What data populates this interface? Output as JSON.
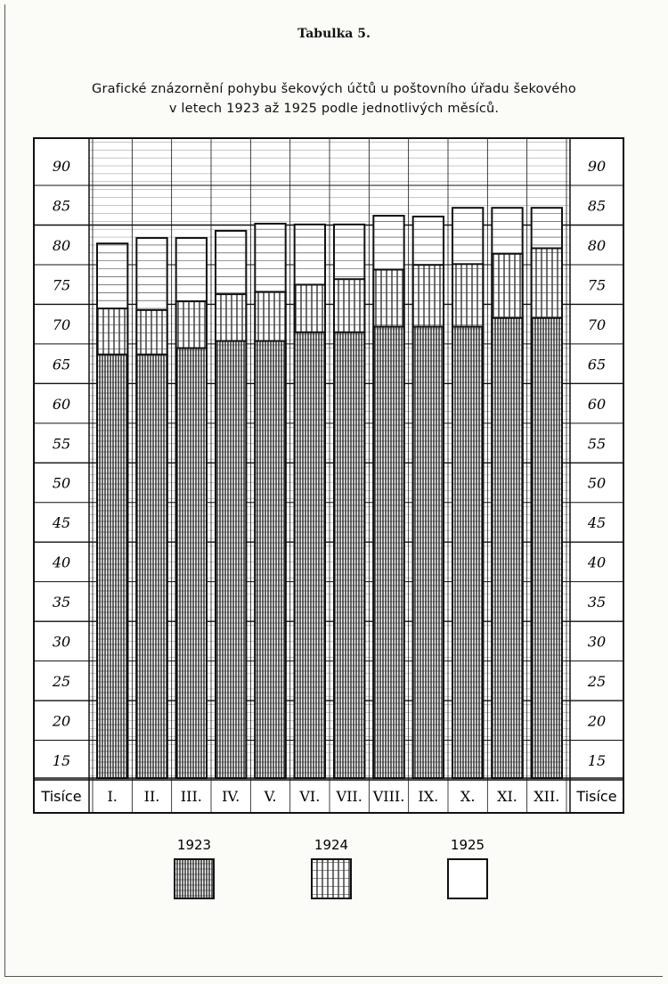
{
  "title": "Tabulka 5.",
  "subtitle_line1": "Grafické znázornění pohybu šekových účtů u poštovního úřadu šekového",
  "subtitle_line2": "v letech 1923 až 1925 podle jednotlivých měsíců.",
  "chart_data": {
    "type": "bar",
    "title": "Grafické znázornění pohybu šekových účtů u poštovního úřadu šekového v letech 1923 až 1925 podle jednotlivých měsíců.",
    "ylabel": "Tisíce",
    "ylim": [
      12,
      95
    ],
    "yticks": [
      "15",
      "20",
      "25",
      "30",
      "35",
      "40",
      "45",
      "50",
      "55",
      "60",
      "65",
      "70",
      "75",
      "80",
      "85",
      "90"
    ],
    "categories": [
      "I.",
      "II.",
      "III.",
      "IV.",
      "V.",
      "VI.",
      "VII.",
      "VIII.",
      "IX.",
      "X.",
      "XI.",
      "XII."
    ],
    "grid": true,
    "legend_placement": "bottom",
    "series": [
      {
        "name": "1923",
        "pattern": "dense-vertical-hatch",
        "values": [
          66.2,
          66.2,
          67.0,
          67.9,
          67.9,
          69.0,
          69.0,
          69.7,
          69.7,
          69.7,
          70.8,
          70.8
        ]
      },
      {
        "name": "1924",
        "pattern": "vertical-hatch",
        "values": [
          72.0,
          71.8,
          72.9,
          73.8,
          74.1,
          75.0,
          75.7,
          76.9,
          77.5,
          77.6,
          78.9,
          79.6
        ]
      },
      {
        "name": "1925",
        "pattern": "blank",
        "values": [
          80.2,
          80.9,
          80.9,
          81.8,
          82.7,
          82.6,
          82.6,
          83.7,
          83.6,
          84.7,
          84.7,
          84.7
        ]
      }
    ]
  }
}
